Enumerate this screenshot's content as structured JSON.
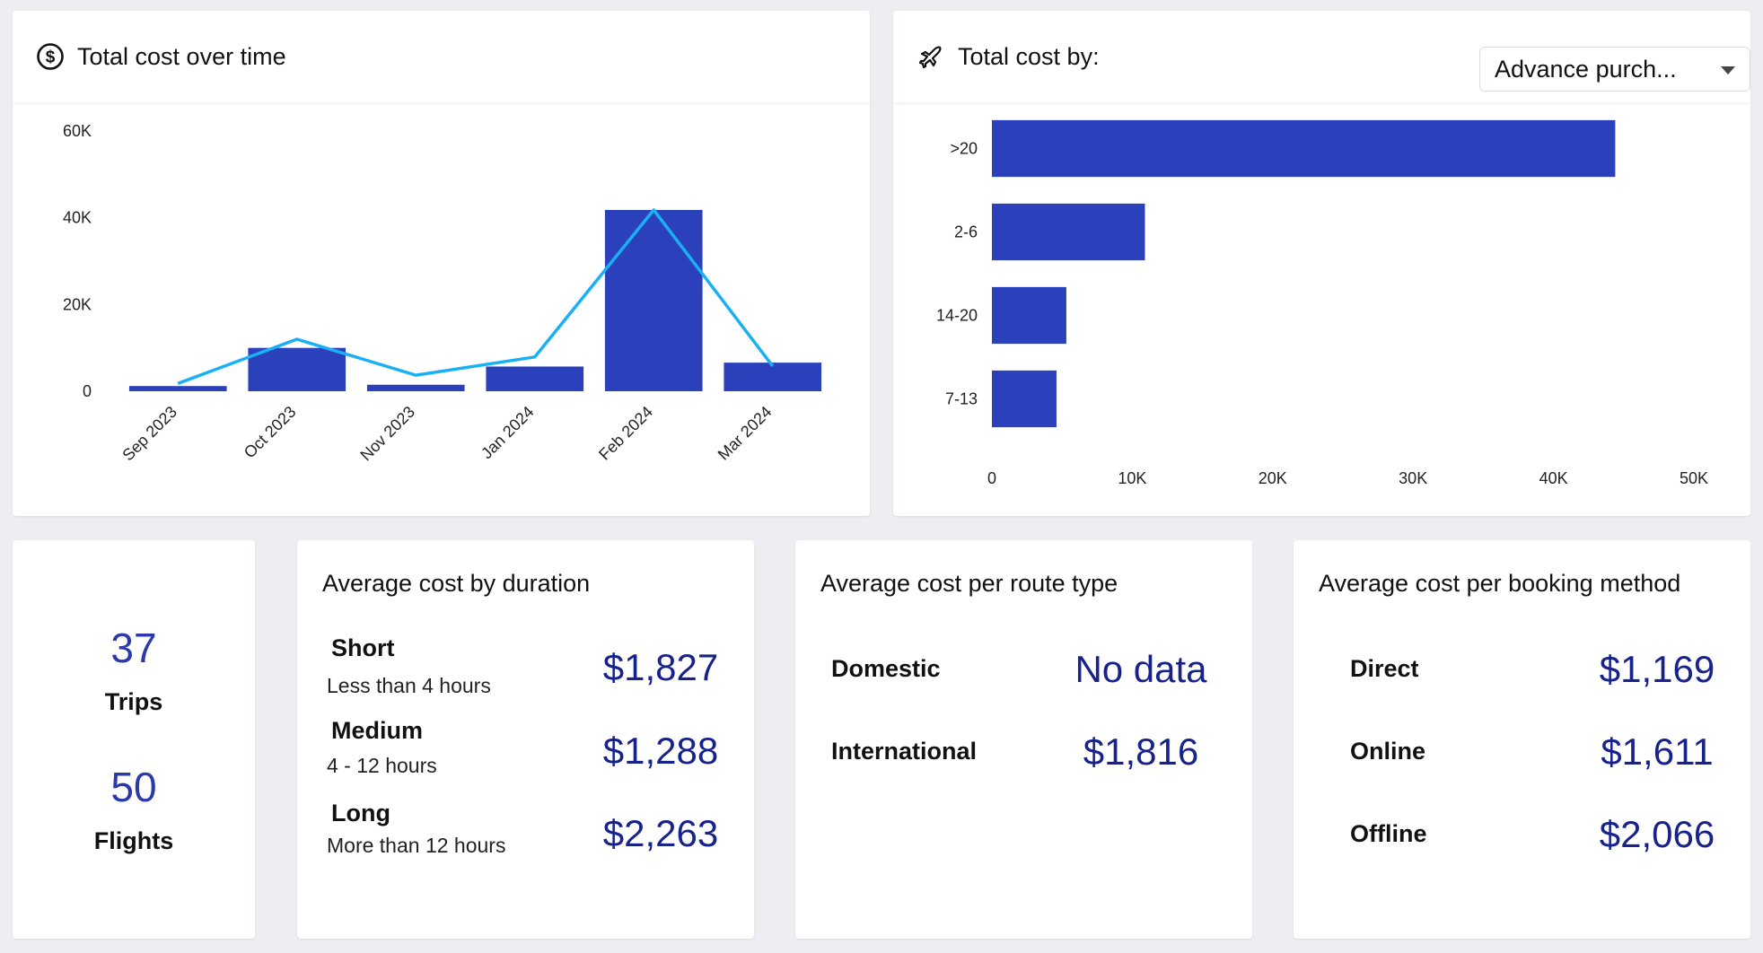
{
  "colors": {
    "bar": "#2b41bb",
    "line": "#1ab0f4",
    "value": "#17238a"
  },
  "card1": {
    "title": "Total cost over time",
    "icon": "dollar-circle-icon"
  },
  "card2": {
    "title": "Total cost by:",
    "icon": "airplane-icon",
    "dropdown_value": "Advance purch..."
  },
  "chart_data": [
    {
      "type": "bar",
      "title": "Total cost over time",
      "categories": [
        "Sep 2023",
        "Oct 2023",
        "Nov 2023",
        "Jan 2024",
        "Feb 2024",
        "Mar 2024"
      ],
      "series": [
        {
          "type": "bar",
          "values": [
            1200,
            10000,
            1500,
            5700,
            41800,
            6600
          ]
        },
        {
          "type": "line",
          "values": [
            1800,
            12000,
            3700,
            7900,
            41800,
            5800
          ]
        }
      ],
      "ylim": [
        0,
        60000
      ],
      "yticks": [
        0,
        20000,
        40000,
        60000
      ],
      "ytick_labels": [
        "0",
        "20K",
        "40K",
        "60K"
      ],
      "grid": false
    },
    {
      "type": "bar",
      "orientation": "horizontal",
      "title": "Total cost by:",
      "categories": [
        ">20",
        "2-6",
        "14-20",
        "7-13"
      ],
      "values": [
        44400,
        10900,
        5300,
        4600
      ],
      "xlim": [
        0,
        50000
      ],
      "xticks": [
        0,
        10000,
        20000,
        30000,
        40000,
        50000
      ],
      "xtick_labels": [
        "0",
        "10K",
        "20K",
        "30K",
        "40K",
        "50K"
      ],
      "grid": false
    }
  ],
  "kpi": {
    "trips_value": "37",
    "trips_label": "Trips",
    "flights_value": "50",
    "flights_label": "Flights"
  },
  "duration": {
    "title": "Average cost by duration",
    "rows": [
      {
        "label": "Short",
        "sub": "Less than 4 hours",
        "value": "$1,827"
      },
      {
        "label": "Medium",
        "sub": "4 - 12 hours",
        "value": "$1,288"
      },
      {
        "label": "Long",
        "sub": "More than 12 hours",
        "value": "$2,263"
      }
    ]
  },
  "route": {
    "title": "Average cost per route type",
    "rows": [
      {
        "label": "Domestic",
        "value": "No data"
      },
      {
        "label": "International",
        "value": "$1,816"
      }
    ]
  },
  "booking": {
    "title": "Average cost per booking method",
    "rows": [
      {
        "label": "Direct",
        "value": "$1,169"
      },
      {
        "label": "Online",
        "value": "$1,611"
      },
      {
        "label": "Offline",
        "value": "$2,066"
      }
    ]
  }
}
